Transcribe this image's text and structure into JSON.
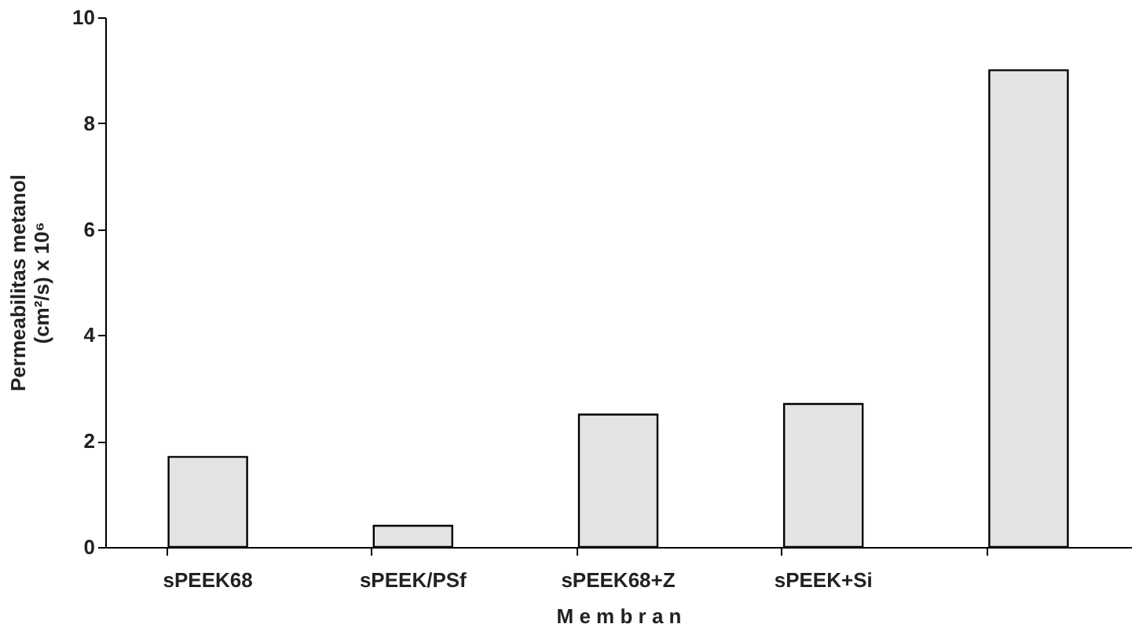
{
  "chart_data": {
    "type": "bar",
    "xlabel": "M e m b r a n",
    "ylabel": "Permeabilitas metanol (cm²/s) x 10⁶",
    "categories": [
      "sPEEK68",
      "sPEEK/PSf",
      "sPEEK68+Z",
      "sPEEK+Si",
      null
    ],
    "values": [
      1.7,
      0.4,
      2.5,
      2.7,
      9.0
    ],
    "color": "#e3e3e3",
    "ylim": [
      0,
      10
    ],
    "yticks": [
      0,
      2,
      4,
      6,
      8,
      10
    ],
    "grid": false
  }
}
